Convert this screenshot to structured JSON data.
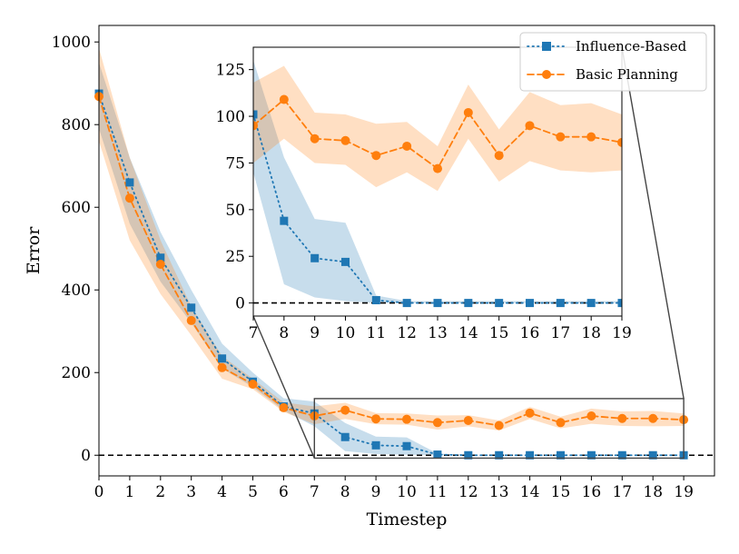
{
  "chart_data": {
    "type": "line",
    "title": "",
    "xlabel": "Timestep",
    "ylabel": "Error",
    "x": [
      0,
      1,
      2,
      3,
      4,
      5,
      6,
      7,
      8,
      9,
      10,
      11,
      12,
      13,
      14,
      15,
      16,
      17,
      18,
      19
    ],
    "xlim": [
      0,
      20
    ],
    "ylim": [
      -50,
      1040
    ],
    "xticks": [
      "0",
      "1",
      "2",
      "3",
      "4",
      "5",
      "6",
      "7",
      "8",
      "9",
      "10",
      "11",
      "12",
      "13",
      "14",
      "15",
      "16",
      "17",
      "18",
      "19"
    ],
    "yticks": [
      "0",
      "200",
      "400",
      "600",
      "800",
      "1000"
    ],
    "grid": false,
    "legend": "top-right",
    "reference_line": 0,
    "series": [
      {
        "name": "Influence-Based",
        "color": "#1f77b4",
        "linestyle": "dotted",
        "marker": "square",
        "values": [
          875,
          660,
          478,
          357,
          234,
          178,
          118,
          101,
          44,
          24,
          22,
          1.5,
          0,
          0,
          0,
          0,
          0,
          0,
          0,
          0
        ],
        "lower": [
          790,
          560,
          420,
          320,
          210,
          165,
          108,
          70,
          10,
          3,
          1,
          0,
          0,
          0,
          0,
          0,
          0,
          0,
          0,
          0
        ],
        "upper": [
          950,
          720,
          540,
          400,
          270,
          200,
          138,
          130,
          78,
          45,
          43,
          4,
          1,
          1,
          1,
          1,
          1,
          1,
          1,
          1
        ]
      },
      {
        "name": "Basic Planning",
        "color": "#ff7f0e",
        "linestyle": "dashed",
        "marker": "circle",
        "values": [
          868,
          622,
          462,
          326,
          212,
          172,
          115,
          95,
          109,
          88,
          87,
          79,
          84,
          72,
          102,
          79,
          95,
          89,
          89,
          86
        ],
        "lower": [
          760,
          520,
          390,
          290,
          185,
          160,
          105,
          75,
          88,
          75,
          74,
          62,
          70,
          60,
          88,
          65,
          76,
          71,
          70,
          71
        ],
        "upper": [
          985,
          720,
          520,
          360,
          240,
          185,
          128,
          118,
          127,
          102,
          101,
          96,
          97,
          84,
          117,
          93,
          113,
          106,
          107,
          101
        ]
      }
    ],
    "inset": {
      "xlim": [
        7,
        19
      ],
      "ylim": [
        -7,
        137
      ],
      "xticks": [
        "7",
        "8",
        "9",
        "10",
        "11",
        "12",
        "13",
        "14",
        "15",
        "16",
        "17",
        "18",
        "19"
      ],
      "yticks": [
        "0",
        "25",
        "50",
        "75",
        "100",
        "125"
      ]
    }
  }
}
